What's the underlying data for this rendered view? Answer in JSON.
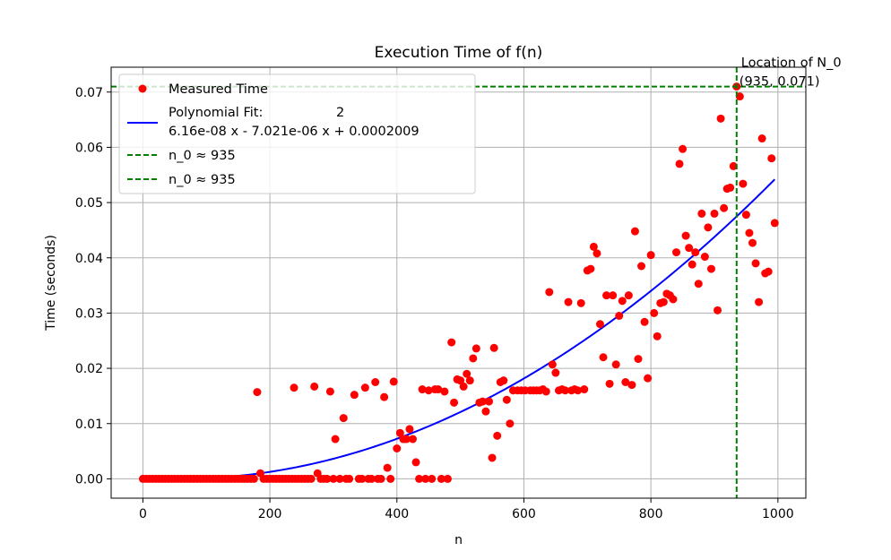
{
  "chart_data": {
    "type": "scatter",
    "title": "Execution Time of f(n)",
    "xlabel": "n",
    "ylabel": "Time (seconds)",
    "xlim": [
      -50,
      1044
    ],
    "ylim": [
      -0.0035,
      0.0745
    ],
    "xticks": [
      0,
      200,
      400,
      600,
      800,
      1000
    ],
    "yticks": [
      0.0,
      0.01,
      0.02,
      0.03,
      0.04,
      0.05,
      0.06,
      0.07
    ],
    "xtick_labels": [
      "0",
      "200",
      "400",
      "600",
      "800",
      "1000"
    ],
    "ytick_labels": [
      "0.00",
      "0.01",
      "0.02",
      "0.03",
      "0.04",
      "0.05",
      "0.06",
      "0.07"
    ],
    "grid": true,
    "legend_position": "upper-left",
    "colors": {
      "measured": "#ff0000",
      "fit": "#0000ff",
      "n0_line": "#008000"
    },
    "series": [
      {
        "name": "Measured Time",
        "kind": "scatter",
        "points": [
          [
            0,
            0
          ],
          [
            5,
            0
          ],
          [
            10,
            0
          ],
          [
            15,
            0
          ],
          [
            20,
            0
          ],
          [
            25,
            0
          ],
          [
            30,
            0
          ],
          [
            35,
            0
          ],
          [
            40,
            0
          ],
          [
            45,
            0
          ],
          [
            50,
            0
          ],
          [
            55,
            0
          ],
          [
            60,
            0
          ],
          [
            65,
            0
          ],
          [
            70,
            0
          ],
          [
            75,
            0
          ],
          [
            80,
            0
          ],
          [
            85,
            0
          ],
          [
            90,
            0
          ],
          [
            95,
            0
          ],
          [
            100,
            0
          ],
          [
            105,
            0
          ],
          [
            110,
            0
          ],
          [
            115,
            0
          ],
          [
            120,
            0
          ],
          [
            125,
            0
          ],
          [
            130,
            0
          ],
          [
            135,
            0
          ],
          [
            140,
            0
          ],
          [
            145,
            0
          ],
          [
            150,
            0
          ],
          [
            155,
            0
          ],
          [
            160,
            0
          ],
          [
            165,
            0
          ],
          [
            170,
            0
          ],
          [
            175,
            0
          ],
          [
            180,
            0.0157
          ],
          [
            185,
            0.001
          ],
          [
            190,
            0
          ],
          [
            195,
            0
          ],
          [
            200,
            0
          ],
          [
            205,
            0
          ],
          [
            210,
            0
          ],
          [
            215,
            0
          ],
          [
            220,
            0
          ],
          [
            225,
            0
          ],
          [
            230,
            0
          ],
          [
            235,
            0
          ],
          [
            238,
            0.0165
          ],
          [
            240,
            0
          ],
          [
            245,
            0
          ],
          [
            250,
            0
          ],
          [
            255,
            0
          ],
          [
            260,
            0
          ],
          [
            265,
            0
          ],
          [
            270,
            0.0167
          ],
          [
            275,
            0.001
          ],
          [
            280,
            0
          ],
          [
            285,
            0
          ],
          [
            290,
            0
          ],
          [
            295,
            0.0158
          ],
          [
            300,
            0
          ],
          [
            303,
            0.0072
          ],
          [
            310,
            0
          ],
          [
            316,
            0.011
          ],
          [
            320,
            0
          ],
          [
            325,
            0
          ],
          [
            333,
            0.0152
          ],
          [
            340,
            0
          ],
          [
            345,
            0
          ],
          [
            350,
            0.0165
          ],
          [
            355,
            0
          ],
          [
            360,
            0
          ],
          [
            366,
            0.0175
          ],
          [
            370,
            0
          ],
          [
            375,
            0
          ],
          [
            380,
            0.0148
          ],
          [
            385,
            0.002
          ],
          [
            390,
            0
          ],
          [
            395,
            0.0176
          ],
          [
            400,
            0.0055
          ],
          [
            405,
            0.0083
          ],
          [
            410,
            0.0072
          ],
          [
            415,
            0.0072
          ],
          [
            420,
            0.009
          ],
          [
            425,
            0.0072
          ],
          [
            430,
            0.003
          ],
          [
            435,
            0
          ],
          [
            440,
            0.0162
          ],
          [
            445,
            0
          ],
          [
            450,
            0.016
          ],
          [
            455,
            0
          ],
          [
            460,
            0.0162
          ],
          [
            465,
            0.0162
          ],
          [
            470,
            0
          ],
          [
            475,
            0.0158
          ],
          [
            480,
            0
          ],
          [
            486,
            0.0247
          ],
          [
            490,
            0.0138
          ],
          [
            495,
            0.018
          ],
          [
            500,
            0.0178
          ],
          [
            505,
            0.0167
          ],
          [
            510,
            0.019
          ],
          [
            515,
            0.0178
          ],
          [
            520,
            0.0218
          ],
          [
            525,
            0.0236
          ],
          [
            530,
            0.0138
          ],
          [
            535,
            0.014
          ],
          [
            540,
            0.0122
          ],
          [
            545,
            0.014
          ],
          [
            550,
            0.0038
          ],
          [
            553,
            0.0237
          ],
          [
            558,
            0.0078
          ],
          [
            563,
            0.0175
          ],
          [
            568,
            0.0178
          ],
          [
            573,
            0.0143
          ],
          [
            578,
            0.01
          ],
          [
            583,
            0.016
          ],
          [
            590,
            0.016
          ],
          [
            596,
            0.016
          ],
          [
            602,
            0.016
          ],
          [
            610,
            0.016
          ],
          [
            615,
            0.016
          ],
          [
            620,
            0.016
          ],
          [
            625,
            0.016
          ],
          [
            630,
            0.0162
          ],
          [
            635,
            0.0158
          ],
          [
            640,
            0.0338
          ],
          [
            645,
            0.0207
          ],
          [
            650,
            0.0192
          ],
          [
            655,
            0.016
          ],
          [
            660,
            0.0162
          ],
          [
            665,
            0.016
          ],
          [
            670,
            0.032
          ],
          [
            675,
            0.016
          ],
          [
            680,
            0.0162
          ],
          [
            685,
            0.016
          ],
          [
            690,
            0.0318
          ],
          [
            695,
            0.0162
          ],
          [
            700,
            0.0377
          ],
          [
            705,
            0.038
          ],
          [
            710,
            0.042
          ],
          [
            715,
            0.0408
          ],
          [
            720,
            0.028
          ],
          [
            725,
            0.022
          ],
          [
            730,
            0.0332
          ],
          [
            735,
            0.0172
          ],
          [
            740,
            0.0332
          ],
          [
            745,
            0.0207
          ],
          [
            750,
            0.0295
          ],
          [
            755,
            0.0322
          ],
          [
            760,
            0.0175
          ],
          [
            765,
            0.0332
          ],
          [
            770,
            0.017
          ],
          [
            775,
            0.0448
          ],
          [
            780,
            0.0217
          ],
          [
            785,
            0.0385
          ],
          [
            790,
            0.0284
          ],
          [
            795,
            0.0182
          ],
          [
            800,
            0.0405
          ],
          [
            805,
            0.03
          ],
          [
            810,
            0.0258
          ],
          [
            815,
            0.0318
          ],
          [
            820,
            0.032
          ],
          [
            825,
            0.0335
          ],
          [
            830,
            0.0332
          ],
          [
            835,
            0.0325
          ],
          [
            840,
            0.041
          ],
          [
            845,
            0.057
          ],
          [
            850,
            0.0597
          ],
          [
            855,
            0.044
          ],
          [
            860,
            0.0418
          ],
          [
            865,
            0.0388
          ],
          [
            870,
            0.041
          ],
          [
            875,
            0.0353
          ],
          [
            880,
            0.048
          ],
          [
            885,
            0.0402
          ],
          [
            890,
            0.0455
          ],
          [
            895,
            0.038
          ],
          [
            900,
            0.048
          ],
          [
            905,
            0.0305
          ],
          [
            910,
            0.0652
          ],
          [
            915,
            0.049
          ],
          [
            920,
            0.0525
          ],
          [
            925,
            0.0527
          ],
          [
            930,
            0.0566
          ],
          [
            935,
            0.071
          ],
          [
            940,
            0.0692
          ],
          [
            945,
            0.0534
          ],
          [
            950,
            0.0478
          ],
          [
            955,
            0.0445
          ],
          [
            960,
            0.0427
          ],
          [
            965,
            0.039
          ],
          [
            970,
            0.032
          ],
          [
            975,
            0.0616
          ],
          [
            980,
            0.0372
          ],
          [
            985,
            0.0375
          ],
          [
            990,
            0.058
          ],
          [
            995,
            0.0463
          ]
        ]
      },
      {
        "name": "Polynomial Fit:",
        "equation_line": "6.16e-08 x - 7.021e-06 x + 0.0002009",
        "exponent": "2",
        "kind": "line",
        "coefficients": [
          6.16e-08,
          -7.021e-06,
          0.0002009
        ],
        "x_range": [
          0,
          995
        ]
      },
      {
        "name": "n_0 ≈ 935",
        "kind": "hline",
        "y": 0.071
      },
      {
        "name": "n_0 ≈ 935",
        "kind": "vline",
        "x": 935
      }
    ],
    "annotations": [
      {
        "text_line1": "Location of N_0",
        "text_line2": "(935, 0.071)",
        "x": 935,
        "y": 0.071
      }
    ]
  }
}
